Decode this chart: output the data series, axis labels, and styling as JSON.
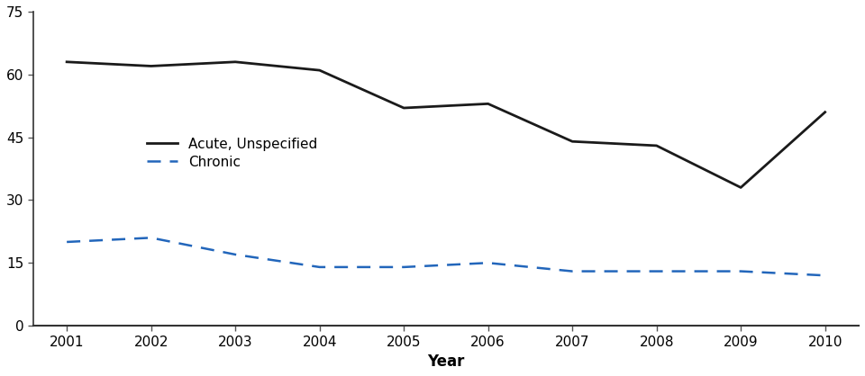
{
  "years": [
    2001,
    2002,
    2003,
    2004,
    2005,
    2006,
    2007,
    2008,
    2009,
    2010
  ],
  "acute": [
    63,
    62,
    63,
    61,
    52,
    53,
    44,
    43,
    33,
    51
  ],
  "chronic": [
    20,
    21,
    17,
    14,
    14,
    15,
    13,
    13,
    13,
    12
  ],
  "acute_color": "#1a1a1a",
  "chronic_color": "#2266bb",
  "acute_label": "Acute, Unspecified",
  "chronic_label": "Chronic",
  "xlabel": "Year",
  "ylim": [
    0,
    75
  ],
  "yticks": [
    0,
    15,
    30,
    45,
    60,
    75
  ],
  "acute_linewidth": 2.0,
  "chronic_linewidth": 1.8,
  "legend_fontsize": 11,
  "axis_label_fontsize": 12,
  "tick_fontsize": 11,
  "ylabel_fontsize": 12
}
